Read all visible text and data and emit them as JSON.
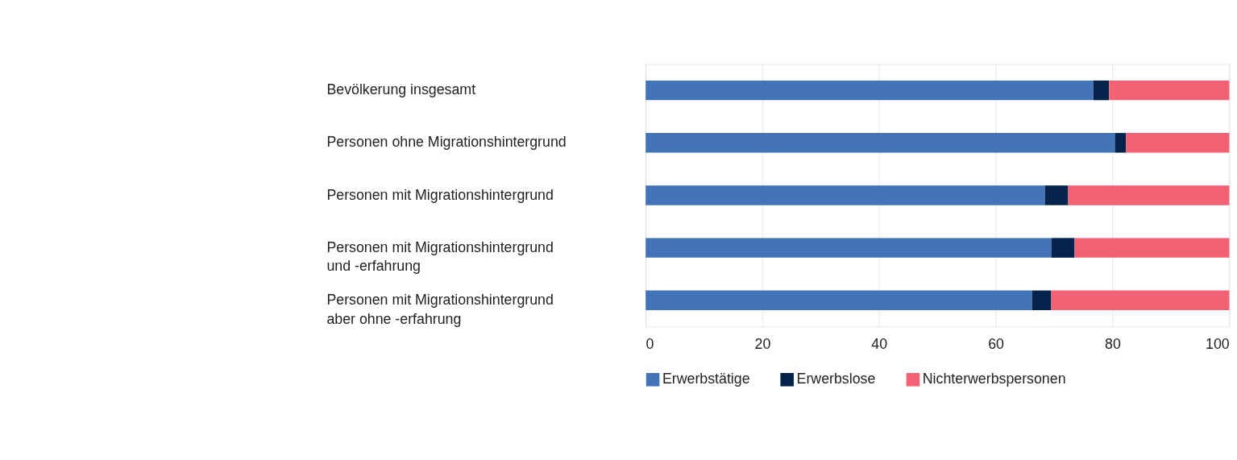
{
  "chart_data": {
    "type": "bar",
    "orientation": "horizontal",
    "stacked": true,
    "categories": [
      "Bevölkerung insgesamt",
      "Personen ohne Migrationshintergrund",
      "Personen mit Migrationshintergrund",
      "Personen mit Migrationshintergrund\nund -erfahrung",
      "Personen mit Migrationshintergrund\naber ohne -erfahrung"
    ],
    "series": [
      {
        "name": "Erwerbstätige",
        "color": "#4374b8",
        "values": [
          76.7,
          80.4,
          68.4,
          69.5,
          66.2
        ]
      },
      {
        "name": "Erwerbslose",
        "color": "#03224c",
        "values": [
          2.7,
          1.9,
          4.0,
          4.0,
          3.3
        ]
      },
      {
        "name": "Nichterwerbspersonen",
        "color": "#f26174",
        "values": [
          20.6,
          17.7,
          27.6,
          26.5,
          30.5
        ]
      }
    ],
    "xlim": [
      0,
      100
    ],
    "xticks": [
      0,
      20,
      40,
      60,
      80,
      100
    ],
    "grid": "x",
    "legend": "bottom"
  }
}
